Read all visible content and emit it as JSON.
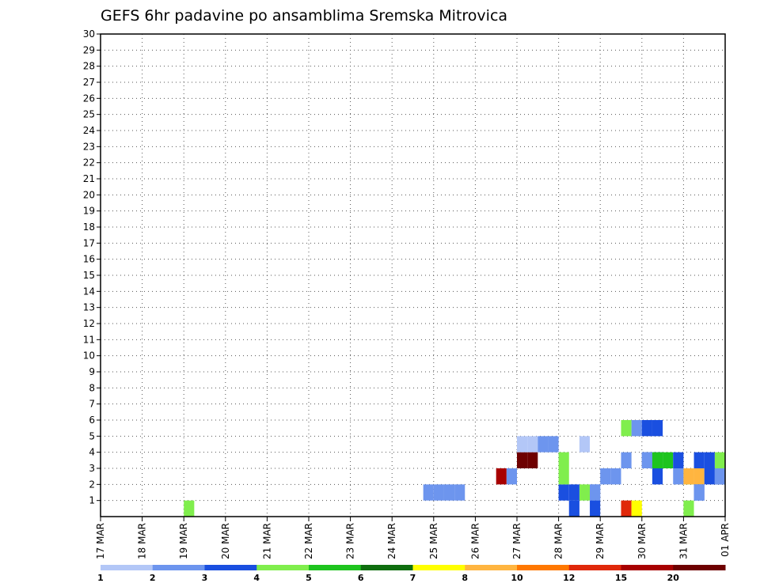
{
  "chart_data": {
    "type": "heatmap",
    "title": "GEFS 6hr padavine po ansamblima Sremska Mitrovica",
    "x_ticks": [
      "17 MAR",
      "18 MAR",
      "19 MAR",
      "20 MAR",
      "21 MAR",
      "22 MAR",
      "23 MAR",
      "24 MAR",
      "25 MAR",
      "26 MAR",
      "27 MAR",
      "28 MAR",
      "29 MAR",
      "30 MAR",
      "31 MAR",
      "01 APR"
    ],
    "y_ticks": [
      1,
      2,
      3,
      4,
      5,
      6,
      7,
      8,
      9,
      10,
      11,
      12,
      13,
      14,
      15,
      16,
      17,
      18,
      19,
      20,
      21,
      22,
      23,
      24,
      25,
      26,
      27,
      28,
      29,
      30
    ],
    "xlim": [
      0,
      60
    ],
    "ylim": [
      0,
      30
    ],
    "x_step_hours": 6,
    "grid": true,
    "legend_placement": "bottom",
    "legend": {
      "colors": [
        "#b3c7f7",
        "#6d95ee",
        "#1a4fe0",
        "#80ee4d",
        "#1ec41e",
        "#0f6e0f",
        "#ffff00",
        "#ffb540",
        "#ff7800",
        "#e0280a",
        "#a80000",
        "#6e0000"
      ],
      "labels": [
        "1",
        "2",
        "3",
        "4",
        "5",
        "6",
        "7",
        "8",
        "10",
        "12",
        "15",
        "20"
      ]
    },
    "cells": [
      [
        50,
        0,
        9
      ],
      [
        51,
        0,
        6
      ],
      [
        56,
        0,
        3
      ],
      [
        8,
        0,
        3
      ],
      [
        56,
        2,
        3
      ],
      [
        59,
        2,
        2
      ],
      [
        59,
        3,
        3
      ],
      [
        58,
        3,
        2
      ],
      [
        57,
        3,
        2
      ],
      [
        53,
        3,
        2
      ],
      [
        52,
        3,
        2
      ],
      [
        40,
        3,
        11
      ],
      [
        41,
        3,
        11
      ],
      [
        50,
        3,
        1
      ],
      [
        52,
        3,
        1
      ],
      [
        53,
        3,
        4
      ],
      [
        54,
        3,
        4
      ],
      [
        55,
        3,
        2
      ],
      [
        38,
        2,
        10
      ],
      [
        39,
        2,
        1
      ],
      [
        46,
        1,
        3
      ],
      [
        47,
        1,
        1
      ],
      [
        31,
        1,
        1
      ],
      [
        32,
        1,
        1
      ],
      [
        33,
        1,
        1
      ],
      [
        34,
        1,
        1
      ],
      [
        47,
        1,
        1
      ],
      [
        48,
        2,
        1
      ],
      [
        49,
        2,
        1
      ],
      [
        55,
        2,
        1
      ],
      [
        56,
        2,
        7
      ],
      [
        57,
        2,
        7
      ],
      [
        58,
        2,
        2
      ],
      [
        59,
        2,
        1
      ],
      [
        53,
        2,
        2
      ],
      [
        57,
        1,
        2
      ],
      [
        57,
        1,
        1
      ],
      [
        44,
        3,
        3
      ],
      [
        47,
        0,
        2
      ],
      [
        45,
        0,
        2
      ],
      [
        44,
        1,
        2
      ],
      [
        44,
        2,
        3
      ],
      [
        45,
        1,
        2
      ],
      [
        40,
        4,
        0
      ],
      [
        41,
        4,
        0
      ],
      [
        42,
        4,
        1
      ],
      [
        43,
        4,
        1
      ],
      [
        46,
        4,
        0
      ],
      [
        50,
        5,
        3
      ],
      [
        51,
        5,
        1
      ],
      [
        52,
        5,
        2
      ],
      [
        53,
        5,
        2
      ]
    ]
  }
}
